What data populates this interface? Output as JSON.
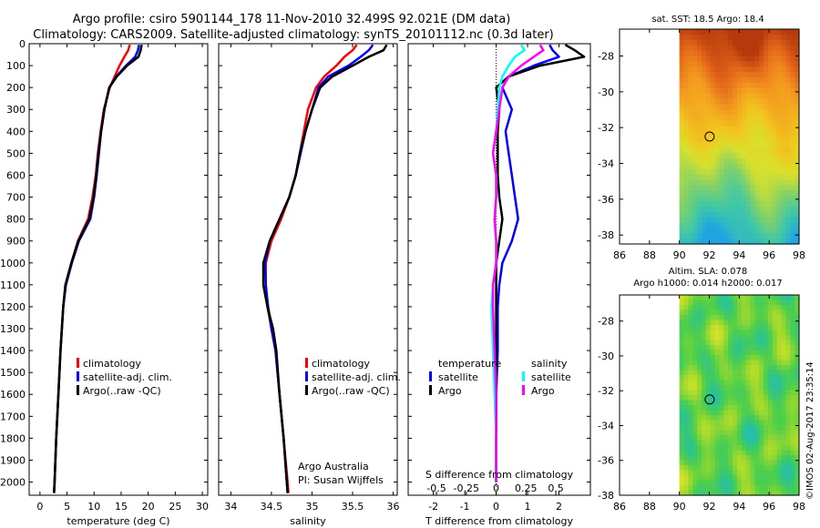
{
  "header": {
    "line1": "Argo profile: csiro 5901144_178 11-Nov-2010 32.499S 92.021E (DM data)",
    "line2": "Climatology: CARS2009. Satellite-adjusted climatology: synTS_20101112.nc (0.3d later)"
  },
  "colors": {
    "climatology": "#ff0000",
    "satellite": "#0000ff",
    "argo": "#000000",
    "sal_satellite": "#00ffff",
    "sal_argo": "#ff00ff"
  },
  "chart_data": [
    {
      "id": "temperature",
      "type": "line",
      "xlabel": "temperature (deg C)",
      "ylabel": "",
      "xlim": [
        -2,
        31
      ],
      "ylim": [
        2060,
        0
      ],
      "xticks": [
        0,
        5,
        10,
        15,
        20,
        25,
        30
      ],
      "yticks": [
        0,
        100,
        200,
        300,
        400,
        500,
        600,
        700,
        800,
        900,
        1000,
        1100,
        1200,
        1300,
        1400,
        1500,
        1600,
        1700,
        1800,
        1900,
        2000
      ],
      "depth": [
        5,
        30,
        60,
        100,
        150,
        200,
        300,
        400,
        500,
        600,
        700,
        800,
        900,
        1000,
        1100,
        1200,
        1400,
        1600,
        1800,
        2000,
        2050
      ],
      "legend": [
        "climatology",
        "satellite-adj. clim.",
        "Argo(..raw -QC)"
      ],
      "series": [
        {
          "name": "climatology",
          "color": "#ff0000",
          "values": [
            16.6,
            16.3,
            15.6,
            14.7,
            13.8,
            12.9,
            11.8,
            11.2,
            10.7,
            10.3,
            9.7,
            8.9,
            7.0,
            5.8,
            4.7,
            4.3,
            3.8,
            3.4,
            3.0,
            2.7,
            2.6
          ]
        },
        {
          "name": "satellite-adj. clim.",
          "color": "#0000ff",
          "values": [
            18.3,
            18.1,
            17.6,
            15.9,
            14.1,
            12.8,
            11.9,
            11.3,
            10.9,
            10.5,
            10.0,
            9.3,
            7.2,
            5.9,
            4.8,
            4.3,
            3.8,
            3.4,
            3.0,
            2.7,
            2.6
          ]
        },
        {
          "name": "Argo(..raw -QC)",
          "color": "#000000",
          "values": [
            18.8,
            18.6,
            18.2,
            16.1,
            14.2,
            12.8,
            11.9,
            11.3,
            10.8,
            10.4,
            9.9,
            9.1,
            7.1,
            5.8,
            4.7,
            4.3,
            3.8,
            3.4,
            3.0,
            2.7,
            2.6
          ]
        }
      ]
    },
    {
      "id": "salinity",
      "type": "line",
      "xlabel": "salinity",
      "ylabel": "",
      "xlim": [
        33.85,
        36.05
      ],
      "ylim": [
        2060,
        0
      ],
      "xticks": [
        34,
        34.5,
        35,
        35.5,
        36
      ],
      "depth": [
        5,
        30,
        60,
        100,
        150,
        200,
        300,
        400,
        500,
        600,
        700,
        800,
        900,
        1000,
        1100,
        1200,
        1300,
        1400,
        1600,
        1800,
        2000,
        2050
      ],
      "legend": [
        "climatology",
        "satellite-adj. clim.",
        "Argo(..raw -QC)"
      ],
      "annotation": [
        "Argo Australia",
        "PI: Susan Wijffels"
      ],
      "series": [
        {
          "name": "climatology",
          "color": "#ff0000",
          "values": [
            35.55,
            35.5,
            35.4,
            35.3,
            35.15,
            35.05,
            34.95,
            34.9,
            34.85,
            34.8,
            34.72,
            34.62,
            34.5,
            34.43,
            34.43,
            34.45,
            34.5,
            34.55,
            34.6,
            34.65,
            34.7,
            34.71
          ]
        },
        {
          "name": "satellite-adj. clim.",
          "color": "#0000ff",
          "values": [
            35.75,
            35.7,
            35.6,
            35.45,
            35.2,
            35.08,
            35.0,
            34.92,
            34.86,
            34.8,
            34.72,
            34.6,
            34.48,
            34.42,
            34.43,
            34.46,
            34.5,
            34.55,
            34.6,
            34.65,
            34.69,
            34.7
          ]
        },
        {
          "name": "Argo(..raw -QC)",
          "color": "#000000",
          "values": [
            35.92,
            35.88,
            35.7,
            35.5,
            35.25,
            35.1,
            35.0,
            34.92,
            34.85,
            34.8,
            34.72,
            34.6,
            34.48,
            34.4,
            34.4,
            34.45,
            34.52,
            34.56,
            34.6,
            34.65,
            34.69,
            34.7
          ]
        }
      ]
    },
    {
      "id": "differences",
      "type": "line",
      "xlabel": "T difference from climatology",
      "xlabel_top": "S difference from climatology",
      "xlim": [
        -2.8,
        3.0
      ],
      "ylim": [
        2060,
        0
      ],
      "xticks": [
        -2,
        -1,
        0,
        1,
        2
      ],
      "top_ticks": [
        {
          "label": "-0.5",
          "at": -1.9
        },
        {
          "label": "-0.25",
          "at": -0.95
        },
        {
          "label": "0",
          "at": 0
        },
        {
          "label": "0.25",
          "at": 0.95
        },
        {
          "label": "0.5",
          "at": 1.9
        }
      ],
      "zero_line": 0,
      "depth": [
        5,
        30,
        60,
        100,
        150,
        200,
        300,
        400,
        500,
        600,
        700,
        800,
        900,
        1000,
        1100,
        1200,
        1400,
        1600,
        1800,
        2000
      ],
      "legend_titles": [
        "temperature",
        "salinity"
      ],
      "legend": [
        "satellite",
        "Argo",
        "satellite",
        "Argo"
      ],
      "series": [
        {
          "name": "temperature satellite",
          "color": "#0000ff",
          "values": [
            1.7,
            1.8,
            2.0,
            1.2,
            0.4,
            0.2,
            0.5,
            0.3,
            0.4,
            0.5,
            0.6,
            0.7,
            0.5,
            0.2,
            0.1,
            0.05,
            0.05,
            0.0,
            0.0,
            0.0
          ]
        },
        {
          "name": "temperature Argo",
          "color": "#000000",
          "values": [
            2.2,
            2.5,
            2.8,
            1.4,
            0.4,
            0.0,
            0.1,
            0.05,
            0.05,
            0.05,
            0.1,
            0.2,
            0.1,
            0.0,
            0.0,
            0.0,
            0.0,
            0.0,
            0.0,
            0.0
          ]
        },
        {
          "name": "salinity satellite",
          "color": "#00ffff",
          "values": [
            0.8,
            0.9,
            0.6,
            0.4,
            0.2,
            0.1,
            0.05,
            0.0,
            -0.1,
            0.0,
            0.0,
            -0.05,
            0.0,
            0.0,
            -0.1,
            -0.15,
            -0.1,
            -0.05,
            0.0,
            0.0
          ]
        },
        {
          "name": "salinity Argo",
          "color": "#ff00ff",
          "values": [
            1.4,
            1.5,
            1.2,
            0.8,
            0.4,
            0.2,
            0.1,
            0.0,
            -0.1,
            0.0,
            0.0,
            -0.05,
            0.0,
            0.0,
            -0.1,
            -0.1,
            -0.05,
            0.0,
            0.0,
            0.0
          ]
        }
      ]
    },
    {
      "id": "sst_map",
      "type": "heatmap",
      "title": "sat. SST: 18.5  Argo: 18.4",
      "xlim": [
        86,
        98
      ],
      "ylim": [
        -38.5,
        -26.5
      ],
      "xticks": [
        86,
        88,
        90,
        92,
        94,
        96,
        98
      ],
      "yticks": [
        -28,
        -30,
        -32,
        -34,
        -36,
        -38
      ],
      "data_xlim": [
        90,
        98
      ],
      "marker": {
        "lon": 92.02,
        "lat": -32.5
      },
      "colormap": [
        "#b43a0c",
        "#e4661a",
        "#f39a1f",
        "#f2c51e",
        "#d8e02c",
        "#7fd16a",
        "#3fc7a9",
        "#1fa6e0"
      ]
    },
    {
      "id": "sla_map",
      "type": "heatmap",
      "title": "Altim. SLA: 0.078",
      "subtitle": "Argo h1000: 0.014 h2000: 0.017",
      "xlim": [
        86,
        98
      ],
      "ylim": [
        -38,
        -26.5
      ],
      "xticks": [
        86,
        88,
        90,
        92,
        94,
        96,
        98
      ],
      "yticks": [
        -28,
        -30,
        -32,
        -34,
        -36,
        -38
      ],
      "data_xlim": [
        90,
        98
      ],
      "marker": {
        "lon": 92.02,
        "lat": -32.5
      },
      "colormap": [
        "#21b8d2",
        "#2ec48a",
        "#4fcf4a",
        "#9ad82f",
        "#d6e227"
      ]
    }
  ],
  "footer_stamp": "©IMOS 02-Aug-2017 23:35:14"
}
